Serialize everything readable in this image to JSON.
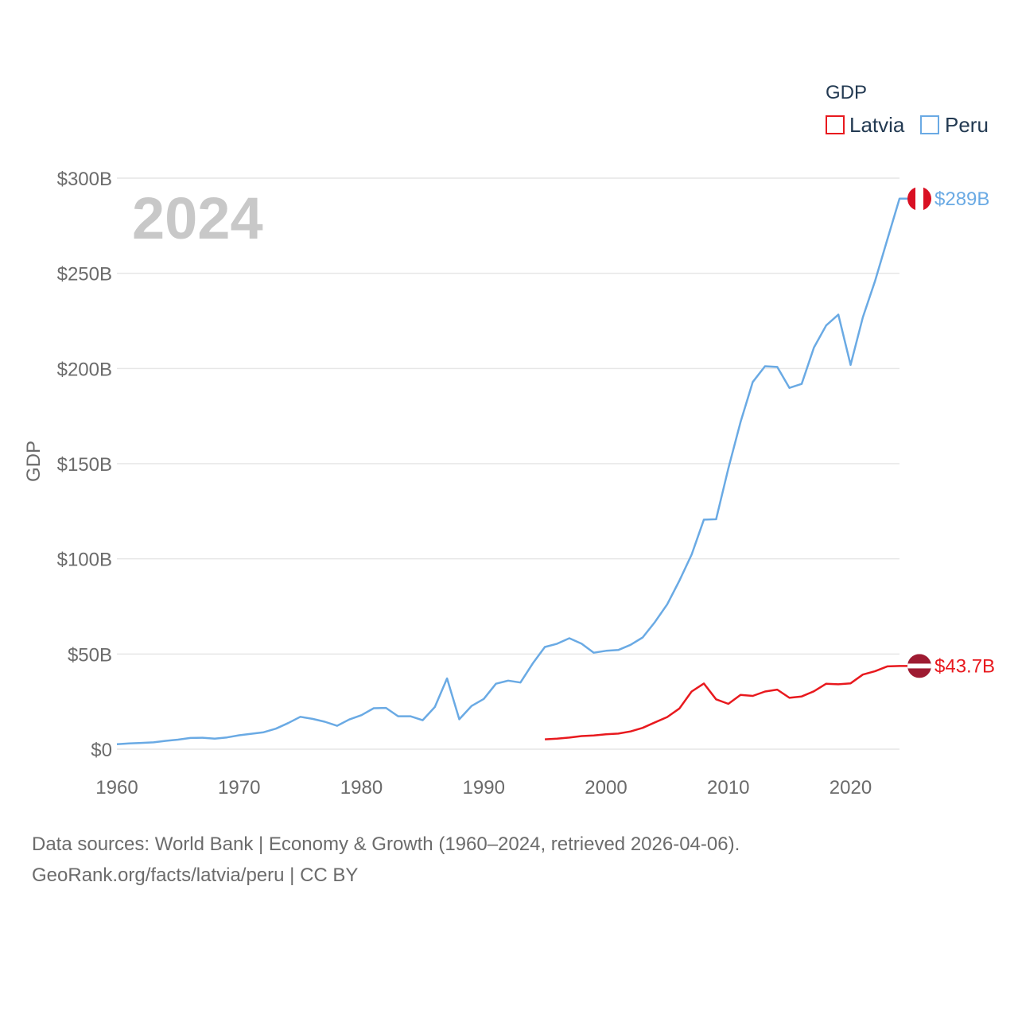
{
  "chart_data": {
    "type": "line",
    "title": "2024",
    "xlabel": "",
    "ylabel": "GDP",
    "xlim": [
      1960,
      2024
    ],
    "ylim": [
      0,
      300
    ],
    "y_unit": "billions USD",
    "y_ticks": [
      {
        "value": 0,
        "label": "$0"
      },
      {
        "value": 50,
        "label": "$50B"
      },
      {
        "value": 100,
        "label": "$100B"
      },
      {
        "value": 150,
        "label": "$150B"
      },
      {
        "value": 200,
        "label": "$200B"
      },
      {
        "value": 250,
        "label": "$250B"
      },
      {
        "value": 300,
        "label": "$300B"
      }
    ],
    "x_ticks": [
      {
        "value": 1960,
        "label": "1960"
      },
      {
        "value": 1970,
        "label": "1970"
      },
      {
        "value": 1980,
        "label": "1980"
      },
      {
        "value": 1990,
        "label": "1990"
      },
      {
        "value": 2000,
        "label": "2000"
      },
      {
        "value": 2010,
        "label": "2010"
      },
      {
        "value": 2020,
        "label": "2020"
      }
    ],
    "legend": {
      "title": "GDP",
      "placement": "top-right"
    },
    "series": [
      {
        "name": "Latvia",
        "color": "#e8191e",
        "end_label": "$43.7B",
        "x": [
          1995,
          1996,
          1997,
          1998,
          1999,
          2000,
          2001,
          2002,
          2003,
          2004,
          2005,
          2006,
          2007,
          2008,
          2009,
          2010,
          2011,
          2012,
          2013,
          2014,
          2015,
          2016,
          2017,
          2018,
          2019,
          2020,
          2021,
          2022,
          2023,
          2024
        ],
        "values": [
          5.2,
          5.5,
          6.1,
          6.9,
          7.2,
          7.8,
          8.2,
          9.3,
          11.2,
          14.1,
          16.9,
          21.4,
          30.3,
          34.5,
          26.2,
          23.8,
          28.5,
          28.0,
          30.3,
          31.3,
          27.0,
          27.7,
          30.4,
          34.4,
          34.1,
          34.6,
          39.2,
          41.0,
          43.5,
          43.7
        ]
      },
      {
        "name": "Peru",
        "color": "#6aaae4",
        "end_label": "$289B",
        "x": [
          1960,
          1961,
          1962,
          1963,
          1964,
          1965,
          1966,
          1967,
          1968,
          1969,
          1970,
          1971,
          1972,
          1973,
          1974,
          1975,
          1976,
          1977,
          1978,
          1979,
          1980,
          1981,
          1982,
          1983,
          1984,
          1985,
          1986,
          1987,
          1988,
          1989,
          1990,
          1991,
          1992,
          1993,
          1994,
          1995,
          1996,
          1997,
          1998,
          1999,
          2000,
          2001,
          2002,
          2003,
          2004,
          2005,
          2006,
          2007,
          2008,
          2009,
          2010,
          2011,
          2012,
          2013,
          2014,
          2015,
          2016,
          2017,
          2018,
          2019,
          2020,
          2021,
          2022,
          2023,
          2024
        ],
        "values": [
          2.6,
          3.0,
          3.3,
          3.6,
          4.4,
          5.0,
          5.9,
          6.0,
          5.5,
          6.2,
          7.3,
          8.1,
          8.9,
          10.8,
          13.7,
          17.0,
          15.9,
          14.4,
          12.3,
          15.6,
          17.9,
          21.5,
          21.7,
          17.3,
          17.3,
          15.2,
          22.2,
          37.2,
          15.7,
          22.7,
          26.4,
          34.4,
          36.0,
          35.0,
          45.0,
          53.7,
          55.4,
          58.3,
          55.4,
          50.7,
          51.7,
          52.1,
          54.8,
          58.7,
          66.8,
          76.1,
          88.6,
          102.2,
          120.6,
          120.8,
          147.5,
          171.8,
          192.9,
          201.2,
          200.8,
          189.8,
          191.9,
          211.0,
          222.6,
          228.3,
          201.9,
          226.9,
          246.0,
          267.6,
          289.2
        ]
      }
    ]
  },
  "footer": {
    "line1": "Data sources: World Bank | Economy & Growth (1960–2024, retrieved 2026-04-06).",
    "line2": "GeoRank.org/facts/latvia/peru | CC BY"
  }
}
